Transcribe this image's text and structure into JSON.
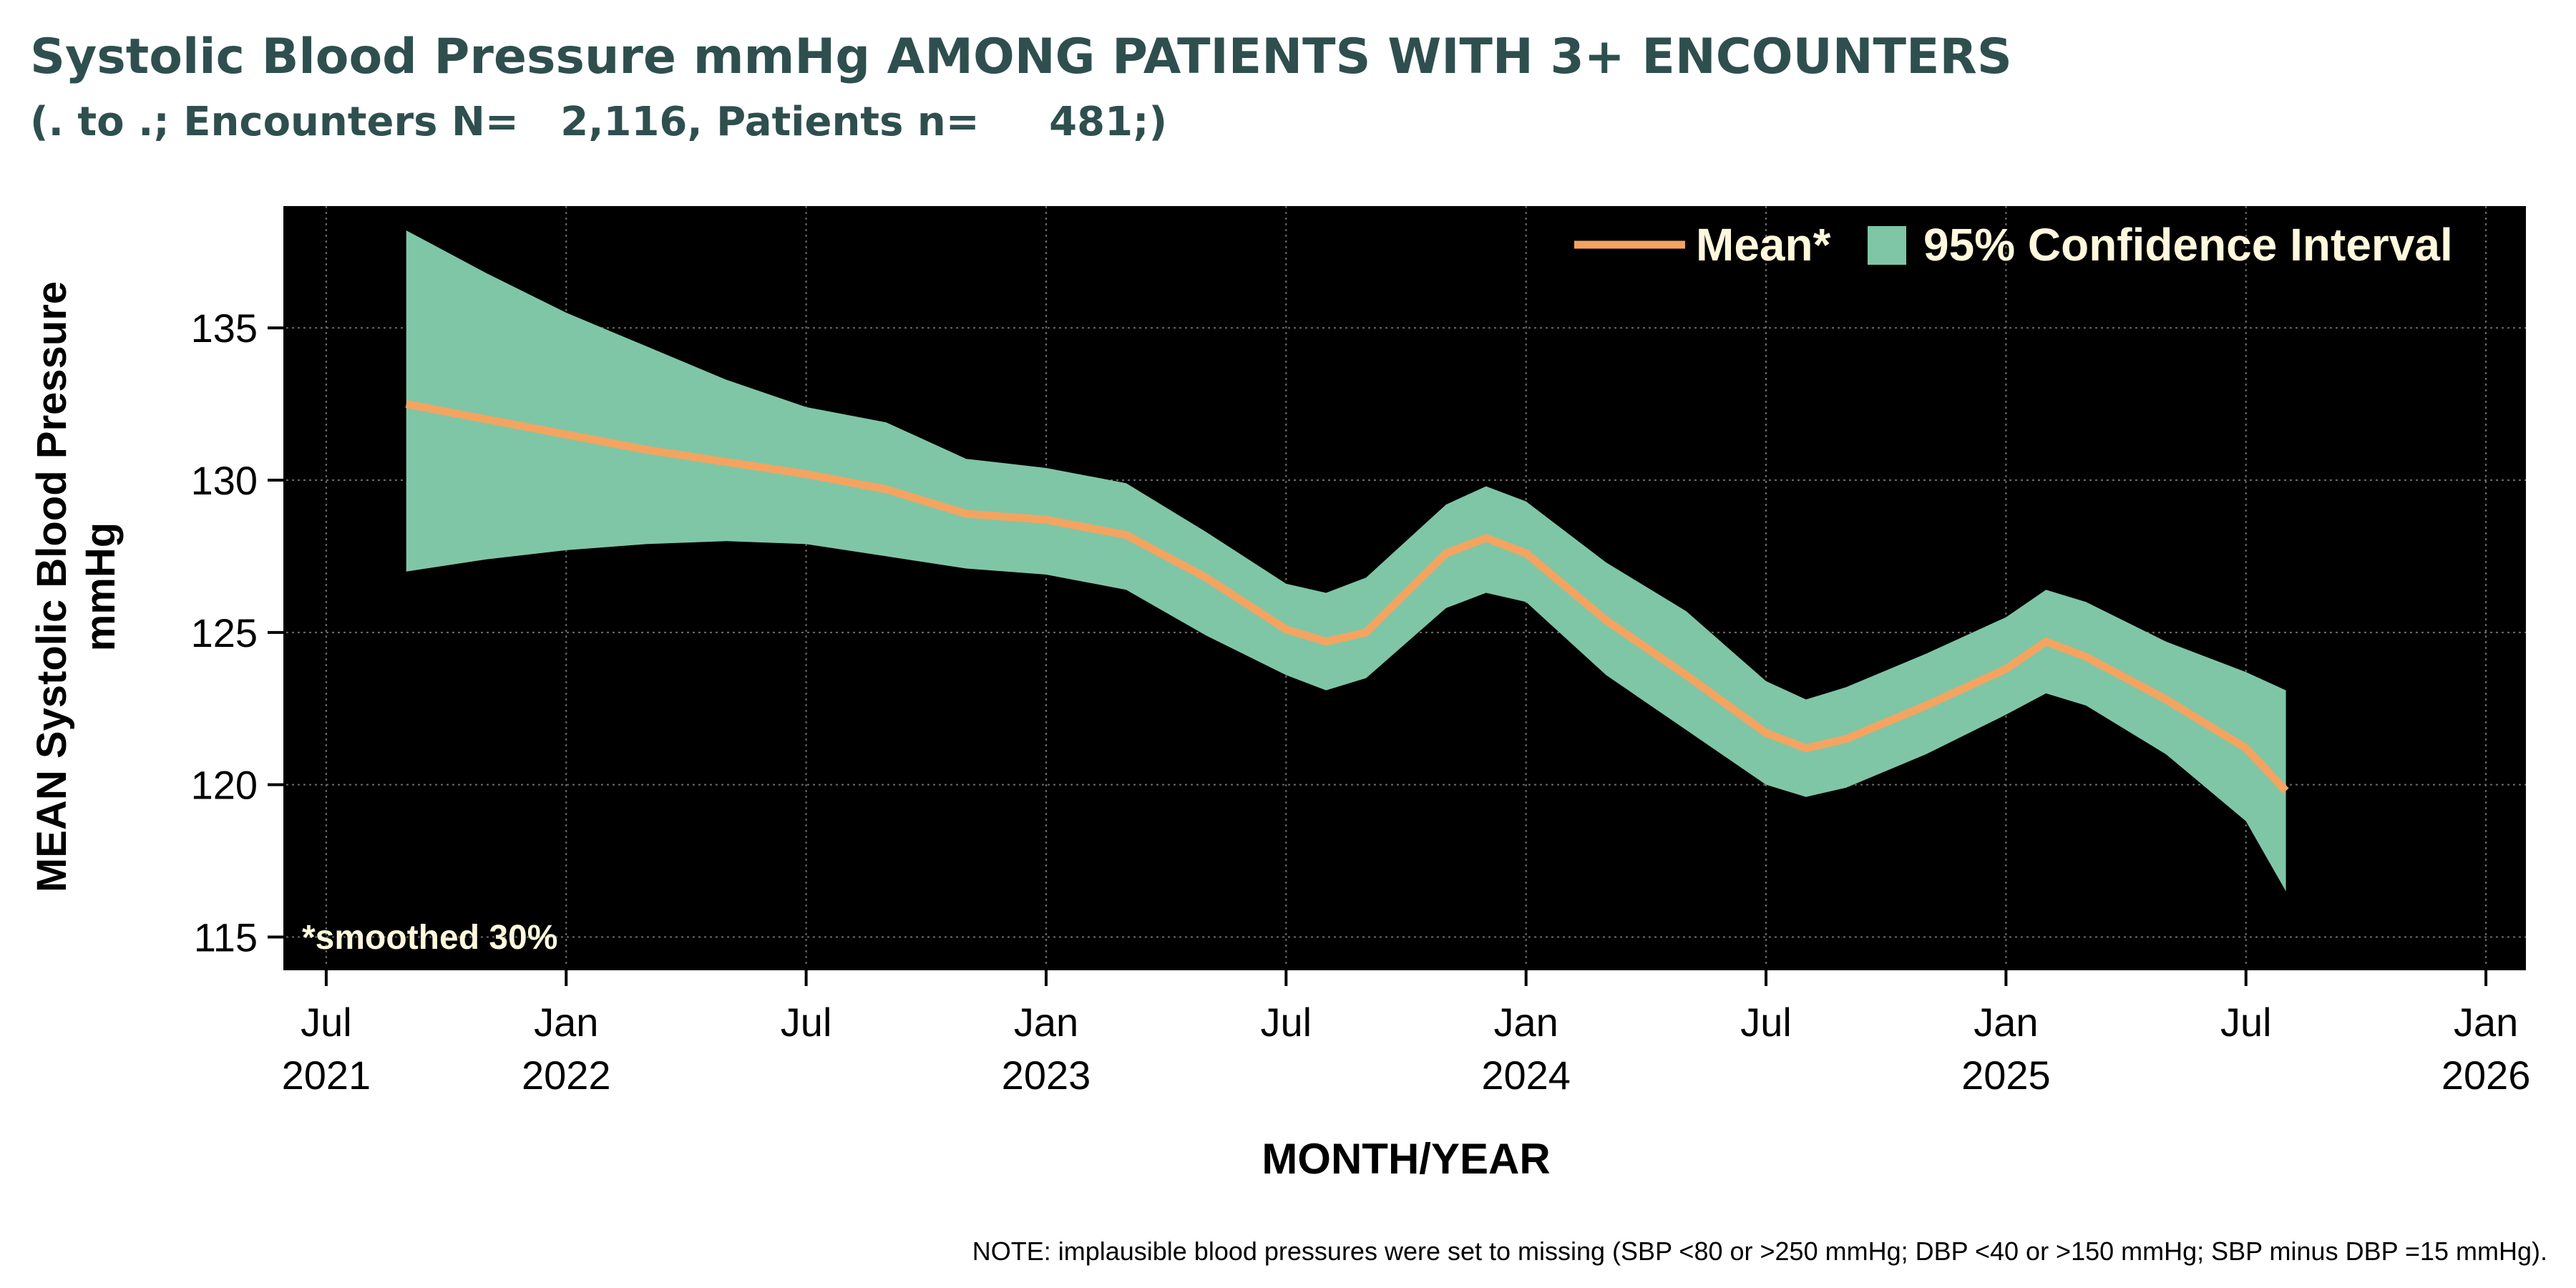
{
  "chart_data": {
    "type": "area",
    "title": "Systolic Blood Pressure mmHg AMONG PATIENTS WITH 3+ ENCOUNTERS",
    "subtitle": "(. to .; Encounters N=   2,116, Patients n=     481;)",
    "xlabel": "MONTH/YEAR",
    "ylabel": "MEAN Systolic Blood Pressure mmHg",
    "ylim": [
      114,
      139
    ],
    "xlim": [
      "2021-06",
      "2026-02"
    ],
    "yticks": [
      115,
      120,
      125,
      130,
      135
    ],
    "xticks": [
      {
        "month": "Jul",
        "year": "2021",
        "date": "2021-07"
      },
      {
        "month": "Jan",
        "year": "2022",
        "date": "2022-01"
      },
      {
        "month": "Jul",
        "year": "",
        "date": "2022-07"
      },
      {
        "month": "Jan",
        "year": "2023",
        "date": "2023-01"
      },
      {
        "month": "Jul",
        "year": "",
        "date": "2023-07"
      },
      {
        "month": "Jan",
        "year": "2024",
        "date": "2024-01"
      },
      {
        "month": "Jul",
        "year": "",
        "date": "2024-07"
      },
      {
        "month": "Jan",
        "year": "2025",
        "date": "2025-01"
      },
      {
        "month": "Jul",
        "year": "",
        "date": "2025-07"
      },
      {
        "month": "Jan",
        "year": "2026",
        "date": "2026-01"
      }
    ],
    "grid": true,
    "legend_position": "top-right",
    "legend": {
      "mean_label": "Mean*",
      "ci_label": "95% Confidence Interval"
    },
    "annotation": "*smoothed 30%",
    "note": "NOTE: implausible blood pressures were set to missing (SBP <80 or >250 mmHg; DBP <40 or >150 mmHg; SBP minus DBP =15 mmHg).",
    "colors": {
      "plot_bg": "#000000",
      "mean": "#f4a460",
      "ci": "#7fc6a6",
      "title": "#2f4f4f",
      "legend_text": "#fff8dc",
      "grid": "#6b6b6b"
    },
    "series": [
      {
        "name": "Mean*",
        "x": [
          "2021-09",
          "2021-11",
          "2022-01",
          "2022-03",
          "2022-05",
          "2022-07",
          "2022-09",
          "2022-11",
          "2023-01",
          "2023-03",
          "2023-05",
          "2023-07",
          "2023-08",
          "2023-09",
          "2023-11",
          "2023-12",
          "2024-01",
          "2024-03",
          "2024-05",
          "2024-07",
          "2024-08",
          "2024-09",
          "2024-11",
          "2025-01",
          "2025-02",
          "2025-03",
          "2025-05",
          "2025-07",
          "2025-08"
        ],
        "y": [
          132.5,
          132.0,
          131.5,
          131.0,
          130.6,
          130.2,
          129.7,
          128.9,
          128.7,
          128.2,
          126.8,
          125.1,
          124.7,
          125.0,
          127.6,
          128.1,
          127.6,
          125.4,
          123.6,
          121.7,
          121.2,
          121.5,
          122.6,
          123.8,
          124.7,
          124.2,
          122.8,
          121.2,
          119.8
        ]
      },
      {
        "name": "95% Confidence Interval",
        "x": [
          "2021-09",
          "2021-11",
          "2022-01",
          "2022-03",
          "2022-05",
          "2022-07",
          "2022-09",
          "2022-11",
          "2023-01",
          "2023-03",
          "2023-05",
          "2023-07",
          "2023-08",
          "2023-09",
          "2023-11",
          "2023-12",
          "2024-01",
          "2024-03",
          "2024-05",
          "2024-07",
          "2024-08",
          "2024-09",
          "2024-11",
          "2025-01",
          "2025-02",
          "2025-03",
          "2025-05",
          "2025-07",
          "2025-08"
        ],
        "upper": [
          138.2,
          136.8,
          135.5,
          134.4,
          133.3,
          132.4,
          131.9,
          130.7,
          130.4,
          129.9,
          128.3,
          126.6,
          126.3,
          126.8,
          129.2,
          129.8,
          129.3,
          127.3,
          125.7,
          123.4,
          122.8,
          123.2,
          124.3,
          125.5,
          126.4,
          126.0,
          124.7,
          123.7,
          123.1
        ],
        "lower": [
          127.0,
          127.4,
          127.7,
          127.9,
          128.0,
          127.9,
          127.5,
          127.1,
          126.9,
          126.4,
          124.9,
          123.6,
          123.1,
          123.5,
          125.8,
          126.3,
          126.0,
          123.6,
          121.8,
          120.0,
          119.6,
          119.9,
          121.0,
          122.3,
          123.0,
          122.6,
          121.0,
          118.8,
          116.5
        ]
      }
    ]
  }
}
